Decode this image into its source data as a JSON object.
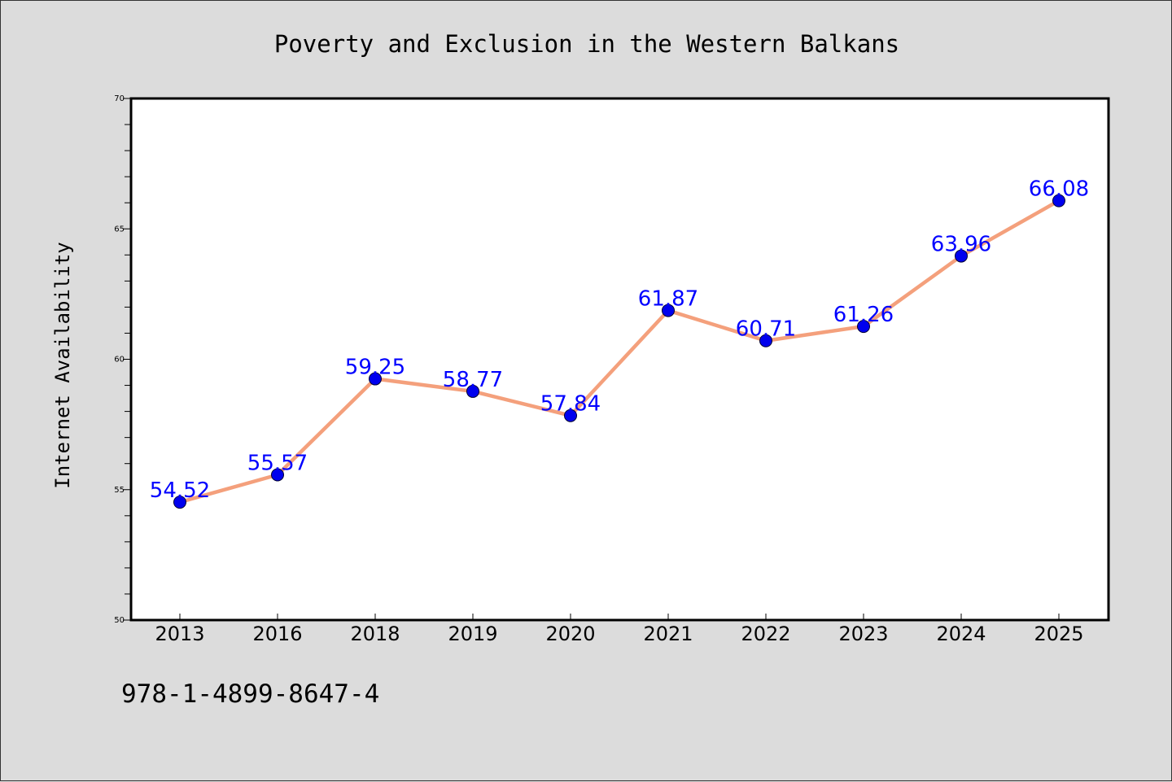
{
  "chart_data": {
    "type": "line",
    "title": "Poverty and Exclusion in the Western Balkans",
    "xlabel": "",
    "ylabel": "Internet Availability",
    "categories": [
      "2013",
      "2016",
      "2018",
      "2019",
      "2020",
      "2021",
      "2022",
      "2023",
      "2024",
      "2025"
    ],
    "series": [
      {
        "values": [
          54.52,
          55.57,
          59.25,
          58.77,
          57.84,
          61.87,
          60.71,
          61.26,
          63.96,
          66.08
        ]
      }
    ],
    "data_labels": [
      "54.52",
      "55.57",
      "59.25",
      "58.77",
      "57.84",
      "61.87",
      "60.71",
      "61.26",
      "63.96",
      "66.08"
    ],
    "ylim": [
      50,
      70
    ],
    "yticks": [
      50,
      55,
      60,
      65,
      70
    ],
    "y_minor_step": 1,
    "grid": false,
    "legend": "none",
    "colors": {
      "line": "#f4a07c",
      "marker": "#0000ee",
      "marker_edge": "#000033",
      "data_label": "#0000ff",
      "plot_background": "#ffffff",
      "figure_background": "#dcdcdc",
      "axes": "#000000"
    }
  },
  "footnote": "978-1-4899-8647-4"
}
